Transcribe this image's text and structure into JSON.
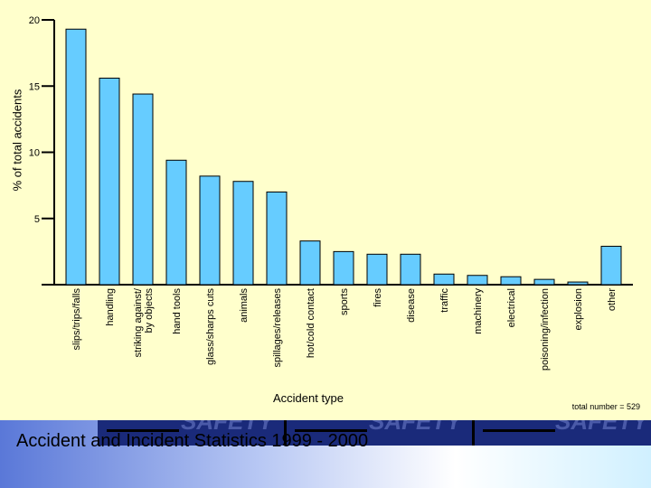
{
  "chart_data": {
    "type": "bar",
    "ylabel": "% of total accidents",
    "xlabel": "Accident type",
    "ylim": [
      0,
      20
    ],
    "yticks": [
      5,
      10,
      15,
      20
    ],
    "grid": false,
    "bar_color": "#66ccff",
    "categories": [
      "slips/trips/falls",
      "handling",
      "striking against/ by objects",
      "hand tools",
      "glass/sharps cuts",
      "animals",
      "spillages/releases",
      "hot/cold contact",
      "sports",
      "fires",
      "disease",
      "traffic",
      "machinery",
      "electrical",
      "poisoning/infection",
      "explosion",
      "other"
    ],
    "values": [
      19.3,
      15.6,
      14.4,
      9.4,
      8.2,
      7.8,
      7.0,
      3.3,
      2.5,
      2.3,
      2.3,
      0.8,
      0.7,
      0.6,
      0.4,
      0.2,
      2.9
    ],
    "annotation": "total number = 529"
  },
  "banner": {
    "title": "Accident and Incident Statistics 1999 - 2000",
    "strip_words": [
      "SAFETY",
      "SAFETY",
      "SAFETY"
    ]
  }
}
